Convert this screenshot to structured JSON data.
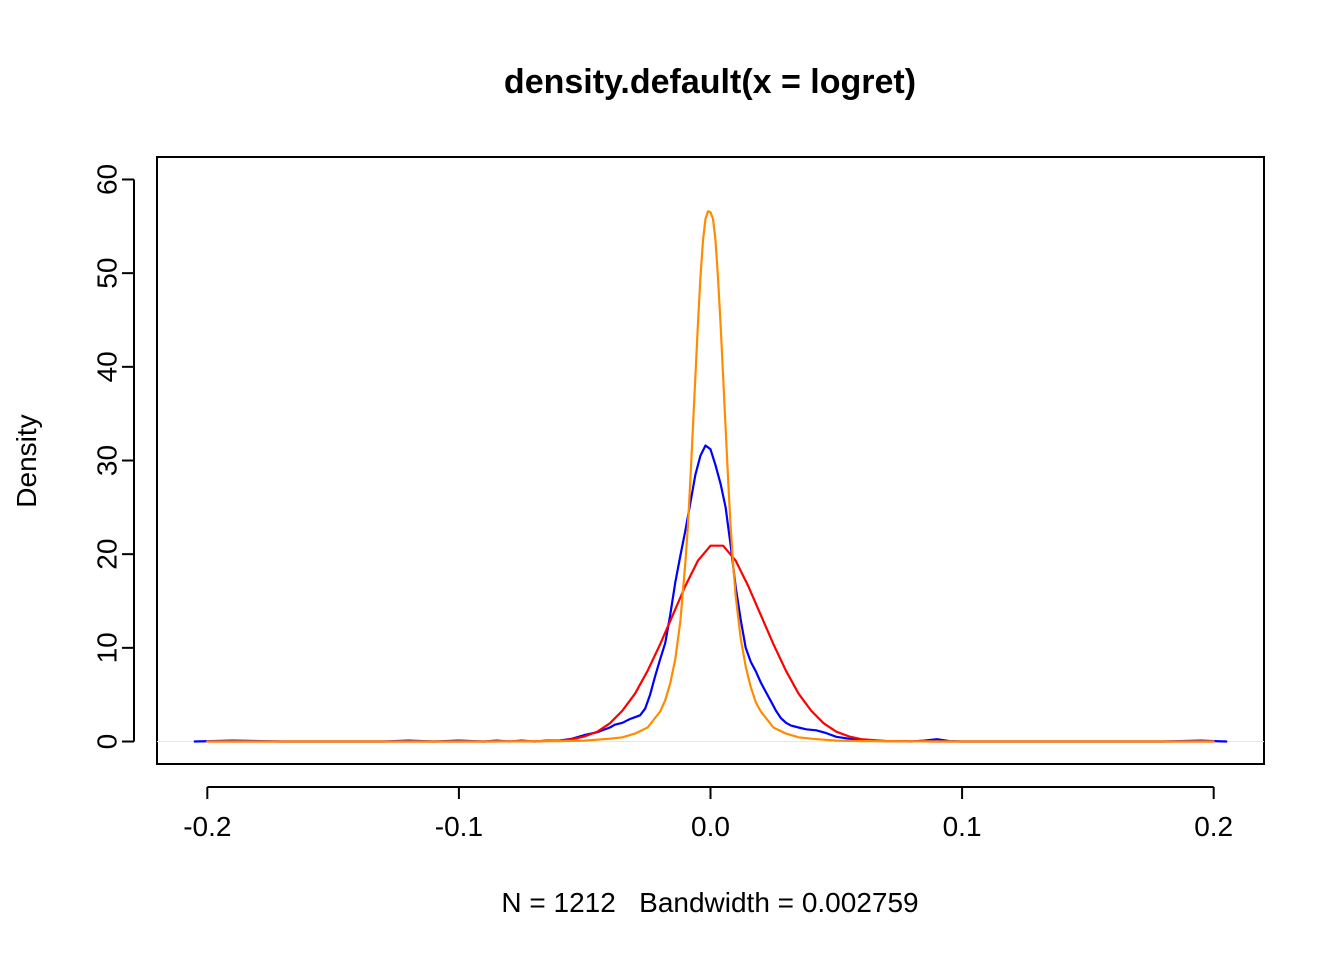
{
  "chart_data": {
    "type": "line",
    "title": "density.default(x = logret)",
    "xlabel": "N = 1212   Bandwidth = 0.002759",
    "ylabel": "Density",
    "xlim": [
      -0.22,
      0.22
    ],
    "ylim": [
      -2.4,
      62.4
    ],
    "xticks": [
      -0.2,
      -0.1,
      0.0,
      0.1,
      0.2
    ],
    "xtick_labels": [
      "-0.2",
      "-0.1",
      "0.0",
      "0.1",
      "0.2"
    ],
    "yticks": [
      0,
      10,
      20,
      30,
      40,
      50,
      60
    ],
    "ytick_labels": [
      "0",
      "10",
      "20",
      "30",
      "40",
      "50",
      "60"
    ],
    "grid": false,
    "legend": "none",
    "series": [
      {
        "color": "#0000ff",
        "x": [
          -0.205,
          -0.19,
          -0.17,
          -0.15,
          -0.13,
          -0.12,
          -0.11,
          -0.1,
          -0.09,
          -0.085,
          -0.08,
          -0.075,
          -0.07,
          -0.065,
          -0.06,
          -0.055,
          -0.05,
          -0.045,
          -0.04,
          -0.038,
          -0.035,
          -0.032,
          -0.03,
          -0.028,
          -0.026,
          -0.024,
          -0.022,
          -0.02,
          -0.018,
          -0.016,
          -0.014,
          -0.012,
          -0.01,
          -0.008,
          -0.006,
          -0.004,
          -0.002,
          0.0,
          0.002,
          0.004,
          0.006,
          0.008,
          0.01,
          0.012,
          0.014,
          0.016,
          0.018,
          0.02,
          0.022,
          0.024,
          0.026,
          0.028,
          0.03,
          0.032,
          0.035,
          0.038,
          0.042,
          0.046,
          0.05,
          0.055,
          0.06,
          0.065,
          0.07,
          0.08,
          0.085,
          0.09,
          0.095,
          0.1,
          0.12,
          0.15,
          0.18,
          0.195,
          0.2,
          0.205
        ],
        "y": [
          0.0,
          0.1,
          0.0,
          0.0,
          0.0,
          0.1,
          0.0,
          0.1,
          0.0,
          0.1,
          0.0,
          0.1,
          0.0,
          0.1,
          0.1,
          0.3,
          0.7,
          1.0,
          1.5,
          1.8,
          2.0,
          2.4,
          2.6,
          2.8,
          3.5,
          5.0,
          7.0,
          8.8,
          10.5,
          13.5,
          17.0,
          19.8,
          22.5,
          25.5,
          28.5,
          30.5,
          31.6,
          31.2,
          29.5,
          27.5,
          25.0,
          21.0,
          16.5,
          13.0,
          10.0,
          8.5,
          7.5,
          6.3,
          5.3,
          4.3,
          3.3,
          2.5,
          2.0,
          1.7,
          1.5,
          1.3,
          1.2,
          0.9,
          0.5,
          0.3,
          0.15,
          0.1,
          0.05,
          0.0,
          0.1,
          0.25,
          0.05,
          0.0,
          0.0,
          0.0,
          0.0,
          0.1,
          0.05,
          0.0
        ]
      },
      {
        "color": "#ff0000",
        "x": [
          -0.2,
          -0.16,
          -0.12,
          -0.09,
          -0.07,
          -0.06,
          -0.055,
          -0.05,
          -0.045,
          -0.04,
          -0.035,
          -0.03,
          -0.025,
          -0.02,
          -0.015,
          -0.01,
          -0.005,
          0.0,
          0.005,
          0.01,
          0.015,
          0.02,
          0.025,
          0.03,
          0.035,
          0.04,
          0.045,
          0.05,
          0.055,
          0.06,
          0.07,
          0.09,
          0.12,
          0.16,
          0.2
        ],
        "y": [
          0.0,
          0.0,
          0.0,
          0.0,
          0.02,
          0.1,
          0.25,
          0.55,
          1.05,
          1.95,
          3.3,
          5.1,
          7.55,
          10.4,
          13.5,
          16.6,
          19.3,
          20.9,
          20.9,
          19.3,
          16.6,
          13.5,
          10.4,
          7.55,
          5.1,
          3.3,
          1.95,
          1.05,
          0.55,
          0.25,
          0.05,
          0.0,
          0.0,
          0.0,
          0.0
        ]
      },
      {
        "color": "#ff8c00",
        "x": [
          -0.2,
          -0.15,
          -0.1,
          -0.08,
          -0.06,
          -0.05,
          -0.04,
          -0.035,
          -0.03,
          -0.025,
          -0.02,
          -0.018,
          -0.016,
          -0.014,
          -0.012,
          -0.01,
          -0.009,
          -0.008,
          -0.007,
          -0.006,
          -0.005,
          -0.004,
          -0.003,
          -0.002,
          -0.001,
          0.0,
          0.001,
          0.002,
          0.003,
          0.004,
          0.005,
          0.006,
          0.007,
          0.008,
          0.009,
          0.01,
          0.012,
          0.014,
          0.016,
          0.018,
          0.02,
          0.025,
          0.03,
          0.035,
          0.04,
          0.05,
          0.06,
          0.08,
          0.1,
          0.15,
          0.2
        ],
        "y": [
          0.0,
          0.0,
          0.0,
          0.01,
          0.05,
          0.1,
          0.3,
          0.45,
          0.85,
          1.5,
          3.2,
          4.4,
          6.2,
          8.8,
          12.8,
          19.0,
          23.0,
          28.0,
          33.5,
          39.0,
          44.5,
          49.5,
          53.5,
          55.8,
          56.6,
          56.5,
          55.8,
          53.5,
          49.5,
          44.5,
          39.0,
          33.5,
          28.0,
          23.0,
          19.0,
          15.5,
          11.0,
          8.0,
          5.8,
          4.2,
          3.2,
          1.5,
          0.85,
          0.45,
          0.3,
          0.1,
          0.05,
          0.01,
          0.0,
          0.0,
          0.0
        ]
      }
    ]
  }
}
